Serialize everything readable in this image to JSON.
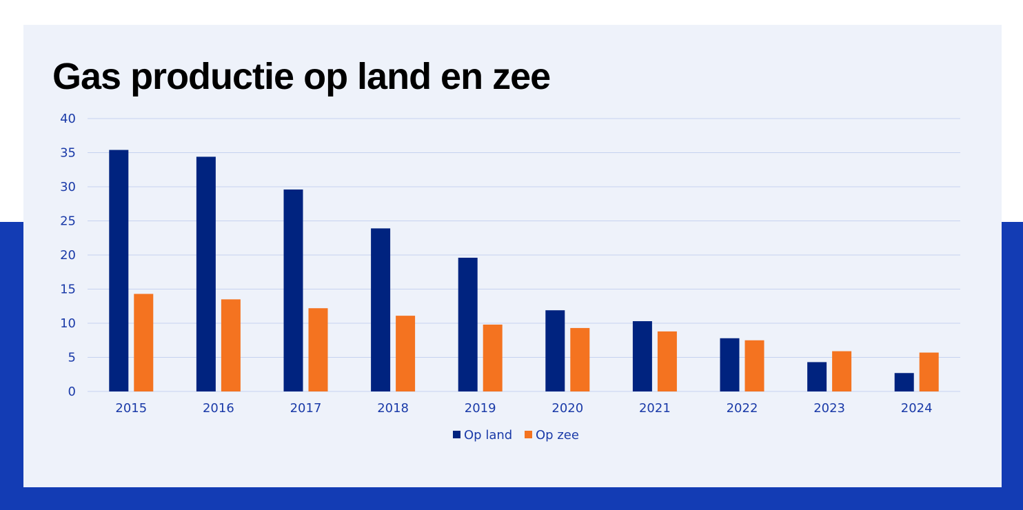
{
  "chart_data": {
    "type": "bar",
    "title": "Gas productie op land en zee",
    "xlabel": "",
    "ylabel": "",
    "categories": [
      "2015",
      "2016",
      "2017",
      "2018",
      "2019",
      "2020",
      "2021",
      "2022",
      "2023",
      "2024"
    ],
    "series": [
      {
        "name": "Op land",
        "color": "#00237f",
        "values": [
          35.4,
          34.4,
          29.6,
          23.9,
          19.6,
          11.9,
          10.3,
          7.8,
          4.3,
          2.7
        ]
      },
      {
        "name": "Op zee",
        "color": "#f47320",
        "values": [
          14.3,
          13.5,
          12.2,
          11.1,
          9.8,
          9.3,
          8.8,
          7.5,
          5.9,
          5.7
        ]
      }
    ],
    "ylim": [
      0,
      40
    ],
    "yticks": [
      "0",
      "5",
      "10",
      "15",
      "20",
      "25",
      "30",
      "35",
      "40"
    ],
    "grid": true,
    "legend_position": "bottom-center"
  },
  "colors": {
    "tick_text": "#1a3aa8",
    "gridline": "#c5d1f0",
    "card_background": "#eef2fa",
    "band": "#133cb4"
  }
}
